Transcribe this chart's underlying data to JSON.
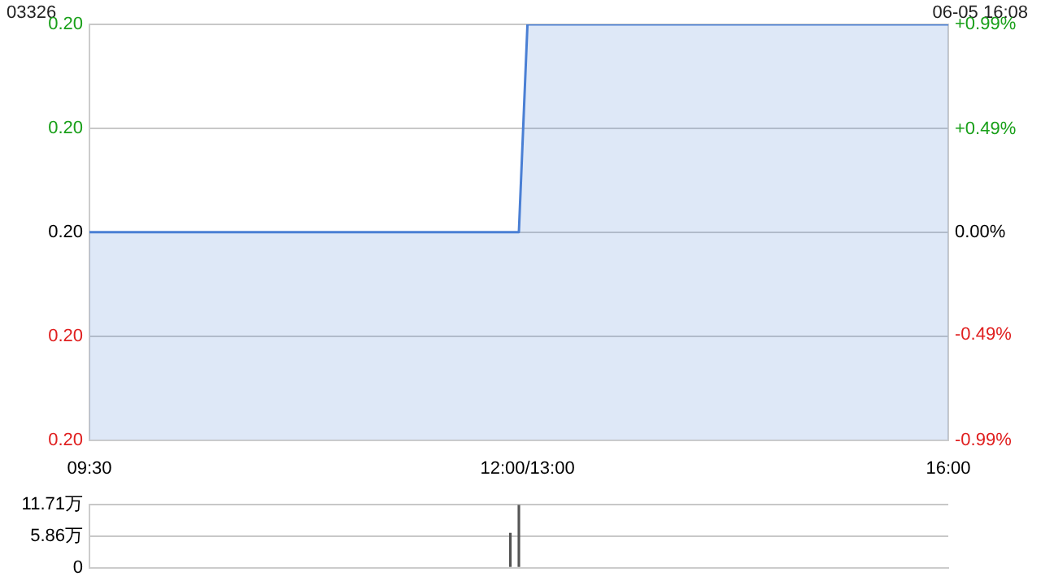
{
  "chart_data": [
    {
      "type": "area",
      "title": "03326",
      "annotations": [
        "06-05 16:08"
      ],
      "categories": [
        "09:30",
        null,
        null,
        null,
        null,
        null,
        null,
        null,
        null,
        null,
        null,
        null,
        null,
        null,
        null,
        null,
        null,
        null,
        null,
        null,
        null,
        null,
        null,
        null,
        null,
        null,
        null,
        null,
        null,
        null,
        null,
        null,
        null,
        null,
        null,
        null,
        null,
        null,
        null,
        null,
        null,
        null,
        null,
        null,
        null,
        null,
        null,
        null,
        null,
        null,
        null,
        "12:00/13:00",
        null,
        null,
        null,
        null,
        null,
        null,
        null,
        null,
        null,
        null,
        null,
        null,
        null,
        null,
        null,
        null,
        null,
        null,
        null,
        null,
        null,
        null,
        null,
        null,
        null,
        null,
        null,
        null,
        null,
        null,
        null,
        null,
        null,
        null,
        null,
        null,
        null,
        null,
        null,
        null,
        null,
        null,
        null,
        null,
        null,
        null,
        null,
        null,
        "16:00"
      ],
      "series": [
        {
          "color": "#4a7fd4",
          "values": [
            0.2,
            0.2,
            0.2,
            0.2,
            0.2,
            0.2,
            0.2,
            0.2,
            0.2,
            0.2,
            0.2,
            0.2,
            0.2,
            0.2,
            0.2,
            0.2,
            0.2,
            0.2,
            0.2,
            0.2,
            0.2,
            0.2,
            0.2,
            0.2,
            0.2,
            0.2,
            0.2,
            0.2,
            0.2,
            0.2,
            0.2,
            0.2,
            0.2,
            0.2,
            0.2,
            0.2,
            0.2,
            0.2,
            0.2,
            0.2,
            0.2,
            0.2,
            0.2,
            0.2,
            0.2,
            0.2,
            0.2,
            0.2,
            0.2,
            0.2,
            0.2,
            0.202,
            0.202,
            0.202,
            0.202,
            0.202,
            0.202,
            0.202,
            0.202,
            0.202,
            0.202,
            0.202,
            0.202,
            0.202,
            0.202,
            0.202,
            0.202,
            0.202,
            0.202,
            0.202,
            0.202,
            0.202,
            0.202,
            0.202,
            0.202,
            0.202,
            0.202,
            0.202,
            0.202,
            0.202,
            0.202,
            0.202,
            0.202,
            0.202,
            0.202,
            0.202,
            0.202,
            0.202,
            0.202,
            0.202,
            0.202,
            0.202,
            0.202,
            0.202,
            0.202,
            0.202,
            0.202,
            0.202,
            0.202,
            0.202,
            0.202
          ]
        }
      ],
      "ylim": [
        0.198,
        0.202
      ],
      "yticks": [
        {
          "value": 0.198,
          "label": "0.20"
        },
        {
          "value": 0.199,
          "label": "0.20"
        },
        {
          "value": 0.2,
          "label": "0.20"
        },
        {
          "value": 0.201,
          "label": "0.20"
        },
        {
          "value": 0.202,
          "label": "0.20"
        }
      ],
      "y2lim": [
        -0.99,
        0.99
      ],
      "y2ticks": [
        {
          "value": -0.99,
          "label": "-0.99%"
        },
        {
          "value": -0.49,
          "label": "-0.49%"
        },
        {
          "value": 0,
          "label": "0.00%"
        },
        {
          "value": 0.49,
          "label": "+0.49%"
        },
        {
          "value": 0.99,
          "label": "+0.99%"
        }
      ],
      "grid": "y",
      "marker": "none"
    },
    {
      "type": "bar",
      "tick_labels": "y",
      "categories": [
        null,
        null,
        null,
        null,
        null,
        null,
        null,
        null,
        null,
        null,
        null,
        null,
        null,
        null,
        null,
        null,
        null,
        null,
        null,
        null,
        null,
        null,
        null,
        null,
        null,
        null,
        null,
        null,
        null,
        null,
        null,
        null,
        null,
        null,
        null,
        null,
        null,
        null,
        null,
        null,
        null,
        null,
        null,
        null,
        null,
        null,
        null,
        null,
        null,
        null,
        null,
        null,
        null,
        null,
        null,
        null,
        null,
        null,
        null,
        null,
        null,
        null,
        null,
        null,
        null,
        null,
        null,
        null,
        null,
        null,
        null,
        null,
        null,
        null,
        null,
        null,
        null,
        null,
        null,
        null,
        null,
        null,
        null,
        null,
        null,
        null,
        null,
        null,
        null,
        null,
        null,
        null,
        null,
        null,
        null,
        null,
        null,
        null,
        null,
        null,
        null
      ],
      "series": [
        {
          "color": "#555555",
          "values": [
            0,
            0,
            0,
            0,
            0,
            0,
            0,
            0,
            0,
            0,
            0,
            0,
            0,
            0,
            0,
            0,
            0,
            0,
            0,
            0,
            0,
            0,
            0,
            0,
            0,
            0,
            0,
            0,
            0,
            0,
            0,
            0,
            0,
            0,
            0,
            0,
            0,
            0,
            0,
            0,
            0,
            0,
            0,
            0,
            0,
            0,
            0,
            0,
            0,
            6.5,
            11.71,
            0,
            0,
            0,
            0,
            0,
            0,
            0,
            0,
            0,
            0,
            0,
            0,
            0,
            0,
            0,
            0,
            0,
            0,
            0,
            0,
            0,
            0,
            0,
            0,
            0,
            0,
            0,
            0,
            0,
            0,
            0,
            0,
            0,
            0,
            0,
            0,
            0,
            0,
            0,
            0,
            0,
            0,
            0,
            0,
            0,
            0,
            0,
            0,
            0,
            0
          ]
        }
      ],
      "ylim": [
        0,
        11.71
      ],
      "yticks": [
        0,
        {
          "value": 5.86,
          "label": "5.86万"
        },
        {
          "value": 11.71,
          "label": "11.71万"
        }
      ],
      "grid": "y"
    }
  ]
}
